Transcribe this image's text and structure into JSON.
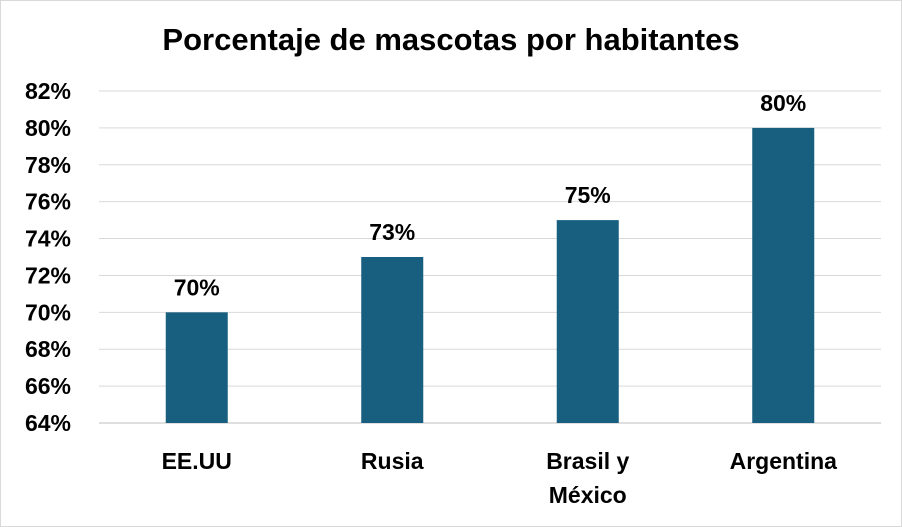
{
  "chart_data": {
    "type": "bar",
    "title": "Porcentaje de mascotas por habitantes",
    "xlabel": "",
    "ylabel": "",
    "categories": [
      [
        "EE.UU"
      ],
      [
        "Rusia"
      ],
      [
        "Brasil y",
        "México"
      ],
      [
        "Argentina"
      ]
    ],
    "values": [
      70,
      73,
      75,
      80
    ],
    "data_labels": [
      "70%",
      "73%",
      "75%",
      "80%"
    ],
    "ylim": [
      64,
      82
    ],
    "ytick_step": 2,
    "ytick_labels": [
      "64%",
      "66%",
      "68%",
      "70%",
      "72%",
      "74%",
      "76%",
      "78%",
      "80%",
      "82%"
    ],
    "grid": true,
    "legend": "none",
    "bar_color": "#175e7f"
  }
}
